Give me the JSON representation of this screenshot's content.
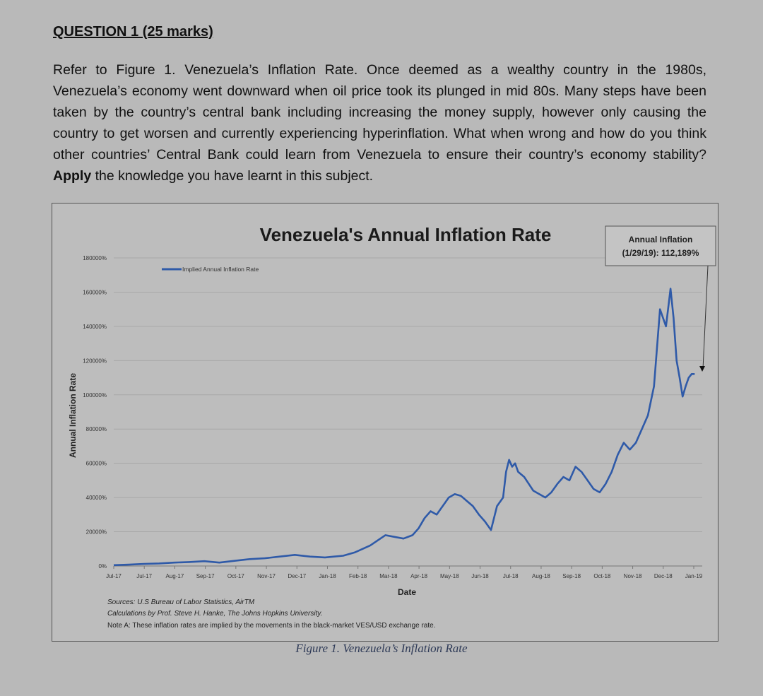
{
  "question": {
    "heading": "QUESTION 1 (25 marks)",
    "body_part1": "Refer to Figure 1. Venezuela’s Inflation Rate. Once deemed as a wealthy country in the 1980s, Venezuela’s economy went downward when oil price took its plunged in mid 80s. Many steps have been taken by the country’s central bank including increasing the money supply, however only causing the country to get worsen and currently experiencing hyperinflation. What when wrong and how do you think other countries’ Central Bank could learn from Venezuela to ensure their country’s economy stability?",
    "apply_word": "Apply",
    "body_part2": "the knowledge you have learnt in this subject."
  },
  "figure": {
    "caption": "Figure 1. Venezuela’s Inflation Rate",
    "sources_line1": "Sources: U.S Bureau of Labor Statistics, AirTM",
    "sources_line2": "Calculations by Prof. Steve H. Hanke, The Johns Hopkins University.",
    "note": "Note A: These inflation rates are implied by the movements in the black-market VES/USD exchange rate.",
    "annotation_line1": "Annual Inflation",
    "annotation_line2": "(1/29/19): 112,189%"
  },
  "chart_data": {
    "type": "line",
    "title": "Venezuela's Annual Inflation Rate",
    "xlabel": "Date",
    "ylabel": "Annual Inflation Rate",
    "ylim": [
      0,
      180000
    ],
    "y_ticks": [
      "0%",
      "20000%",
      "40000%",
      "60000%",
      "80000%",
      "100000%",
      "120000%",
      "140000%",
      "160000%",
      "180000%"
    ],
    "x_tick_labels": [
      "Jul-17",
      "Jul-17",
      "Aug-17",
      "Sep-17",
      "Oct-17",
      "Nov-17",
      "Dec-17",
      "Jan-18",
      "Feb-18",
      "Mar-18",
      "Apr-18",
      "May-18",
      "Jun-18",
      "Jul-18",
      "Aug-18",
      "Sep-18",
      "Oct-18",
      "Nov-18",
      "Dec-18",
      "Jan-19"
    ],
    "grid": true,
    "legend_position": "top-left",
    "series": [
      {
        "name": "Implied Annual Inflation Rate",
        "color": "#2f5aa8",
        "x": [
          0,
          0.5,
          1,
          1.5,
          2,
          2.5,
          3,
          3.5,
          4,
          4.5,
          5,
          5.5,
          6,
          6.5,
          7,
          7.3,
          7.6,
          8,
          8.5,
          9,
          9.3,
          9.6,
          9.9,
          10.1,
          10.3,
          10.5,
          10.7,
          10.9,
          11.1,
          11.3,
          11.5,
          11.7,
          11.9,
          12.1,
          12.3,
          12.5,
          12.7,
          12.9,
          13.0,
          13.1,
          13.2,
          13.3,
          13.4,
          13.6,
          13.75,
          13.9,
          14.1,
          14.3,
          14.5,
          14.7,
          14.9,
          15.1,
          15.3,
          15.5,
          15.7,
          15.9,
          16.1,
          16.3,
          16.5,
          16.7,
          16.9,
          17.1,
          17.3,
          17.5,
          17.7,
          17.9,
          18.1,
          18.3,
          18.45,
          18.55,
          18.65,
          18.75,
          18.85,
          18.95,
          19.05,
          19.15,
          19.25
        ],
        "values": [
          500,
          800,
          1200,
          1500,
          2000,
          2300,
          2800,
          2000,
          3000,
          4000,
          4500,
          5500,
          6500,
          5500,
          5000,
          5500,
          6000,
          8000,
          12000,
          18000,
          17000,
          16000,
          18000,
          22000,
          28000,
          32000,
          30000,
          35000,
          40000,
          42000,
          41000,
          38000,
          35000,
          30000,
          26000,
          21000,
          35000,
          40000,
          55000,
          62000,
          58000,
          60000,
          55000,
          52000,
          48000,
          44000,
          42000,
          40000,
          43000,
          48000,
          52000,
          50000,
          58000,
          55000,
          50000,
          45000,
          43000,
          48000,
          55000,
          65000,
          72000,
          68000,
          72000,
          80000,
          88000,
          105000,
          150000,
          140000,
          162000,
          145000,
          120000,
          110000,
          99000,
          105000,
          110000,
          112189,
          112189
        ]
      }
    ]
  }
}
